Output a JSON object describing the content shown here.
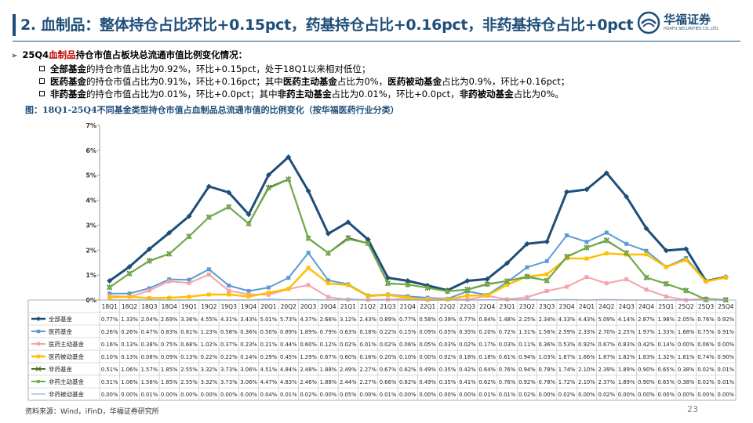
{
  "header": {
    "title": "2. 血制品：整体持仓占比环比+0.15pct，药基持仓占比+0.16pct，非药基持仓占比+0pct",
    "logo_cn": "华福证券",
    "logo_en": "HUAFU SECURITIES CO.,LTD."
  },
  "summary": {
    "lead_pre": "25Q4",
    "lead_red": "血制品",
    "lead_post": "持仓市值占板块总流通市值比例变化情况：",
    "items": [
      [
        {
          "t": "全部基金",
          "b": true
        },
        {
          "t": "的持仓市值占比为0.92%，环比+0.15pct，处于18Q1以来相对低位；",
          "b": false
        }
      ],
      [
        {
          "t": "医药基金",
          "b": true
        },
        {
          "t": "的持仓市值占比为0.91%，环比+0.16pct；其中",
          "b": false
        },
        {
          "t": "医药主动基金",
          "b": true
        },
        {
          "t": "占比为0%，",
          "b": false
        },
        {
          "t": "医药被动基金",
          "b": true
        },
        {
          "t": "占比为0.9%，环比+0.16pct；",
          "b": false
        }
      ],
      [
        {
          "t": "非药基金",
          "b": true
        },
        {
          "t": "的持仓市值占比为0.01%，环比+0.0pct；其中",
          "b": false
        },
        {
          "t": "非药主动基金",
          "b": true
        },
        {
          "t": "占比为0.01%，环比+0.0pct，",
          "b": false
        },
        {
          "t": "非药被动基金",
          "b": true
        },
        {
          "t": "占比为0%。",
          "b": false
        }
      ]
    ]
  },
  "figure_title": "图：18Q1-25Q4不同基金类型持仓市值占血制品总流通市值的比例变化（按华福医药行业分类）",
  "source": "资料来源：Wind，iFinD，华福证券研究所",
  "page_number": "23",
  "chart_data": {
    "type": "line",
    "ylim": [
      0,
      7
    ],
    "y_ticks": [
      "0%",
      "1%",
      "2%",
      "3%",
      "4%",
      "5%",
      "6%",
      "7%"
    ],
    "categories": [
      "18Q1",
      "18Q2",
      "18Q3",
      "18Q4",
      "19Q1",
      "19Q2",
      "19Q3",
      "19Q4",
      "20Q1",
      "20Q2",
      "20Q3",
      "20Q4",
      "21Q1",
      "21Q2",
      "21Q3",
      "21Q4",
      "22Q1",
      "22Q2",
      "22Q3",
      "22Q4",
      "23Q1",
      "23Q2",
      "23Q3",
      "23Q4",
      "24Q1",
      "24Q2",
      "24Q3",
      "24Q4",
      "25Q1",
      "25Q2",
      "25Q3",
      "25Q4"
    ],
    "series": [
      {
        "name": "全部基金",
        "color": "#1f4e79",
        "marker": "diamond",
        "width": 3,
        "values": [
          0.77,
          1.33,
          2.04,
          2.69,
          3.36,
          4.55,
          4.31,
          3.43,
          5.01,
          5.73,
          4.37,
          2.66,
          3.12,
          2.43,
          0.89,
          0.77,
          0.58,
          0.39,
          0.77,
          0.84,
          1.48,
          2.25,
          2.34,
          4.33,
          4.43,
          5.09,
          4.14,
          2.87,
          1.98,
          2.05,
          0.76,
          0.92
        ]
      },
      {
        "name": "医药基金",
        "color": "#5b9bd5",
        "marker": "square",
        "width": 2,
        "values": [
          0.26,
          0.26,
          0.47,
          0.83,
          0.81,
          1.23,
          0.58,
          0.36,
          0.5,
          0.89,
          1.89,
          0.79,
          0.63,
          0.18,
          0.22,
          0.15,
          0.09,
          0.05,
          0.35,
          0.2,
          0.72,
          1.31,
          1.56,
          2.59,
          2.33,
          2.7,
          2.25,
          1.97,
          1.33,
          1.68,
          0.75,
          0.91
        ]
      },
      {
        "name": "医药主动基金",
        "color": "#f4a3a8",
        "marker": "square",
        "width": 2,
        "values": [
          0.16,
          0.13,
          0.38,
          0.75,
          0.68,
          1.02,
          0.37,
          0.23,
          0.21,
          0.44,
          0.6,
          0.12,
          0.02,
          0.01,
          0.02,
          0.06,
          0.05,
          0.03,
          0.02,
          0.17,
          0.03,
          0.11,
          0.36,
          0.53,
          0.92,
          0.67,
          0.83,
          0.42,
          0.14,
          0.0,
          0.06,
          0.0
        ]
      },
      {
        "name": "医药被动基金",
        "color": "#ffc000",
        "marker": "square",
        "width": 2.5,
        "values": [
          0.1,
          0.13,
          0.08,
          0.09,
          0.13,
          0.22,
          0.22,
          0.14,
          0.29,
          0.45,
          1.29,
          0.67,
          0.6,
          0.16,
          0.2,
          0.1,
          0.0,
          0.02,
          0.18,
          0.18,
          0.61,
          0.94,
          1.03,
          1.67,
          1.66,
          1.87,
          1.82,
          1.83,
          1.32,
          1.61,
          0.74,
          0.9
        ]
      },
      {
        "name": "非药基金",
        "color": "#4e6b2d",
        "marker": "asterisk",
        "width": 2,
        "values": [
          0.51,
          1.06,
          1.57,
          1.85,
          2.55,
          3.32,
          3.73,
          3.06,
          4.51,
          4.84,
          2.48,
          1.88,
          2.49,
          2.27,
          0.67,
          0.62,
          0.49,
          0.35,
          0.42,
          0.64,
          0.76,
          0.94,
          0.78,
          1.74,
          2.1,
          2.39,
          1.89,
          0.9,
          0.65,
          0.38,
          0.02,
          0.01
        ]
      },
      {
        "name": "非药主动基金",
        "color": "#70ad47",
        "marker": "circle",
        "width": 2,
        "values": [
          0.51,
          1.06,
          1.56,
          1.85,
          2.55,
          3.32,
          3.73,
          3.06,
          4.47,
          4.83,
          2.46,
          1.88,
          2.44,
          2.27,
          0.66,
          0.62,
          0.49,
          0.35,
          0.41,
          0.62,
          0.76,
          0.92,
          0.78,
          1.72,
          2.1,
          2.37,
          1.89,
          0.9,
          0.65,
          0.38,
          0.02,
          0.01
        ]
      },
      {
        "name": "非药被动基金",
        "color": "#9dc3e6",
        "marker": "none",
        "width": 1.5,
        "values": [
          0.0,
          0.0,
          0.01,
          0.0,
          0.0,
          0.0,
          0.0,
          0.0,
          0.04,
          0.01,
          0.02,
          0.0,
          0.05,
          0.0,
          0.01,
          0.0,
          0.0,
          0.0,
          0.0,
          0.01,
          0.01,
          0.02,
          0.0,
          0.02,
          0.0,
          0.02,
          0.0,
          0.0,
          0.0,
          0.0,
          0.0,
          0.0
        ]
      }
    ]
  }
}
